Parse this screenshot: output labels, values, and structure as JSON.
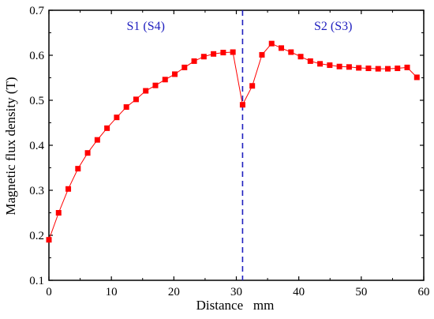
{
  "chart_data": {
    "type": "line",
    "xlabel": "Distance   mm",
    "ylabel": "Magnetic flux density (T)",
    "xlim": [
      0,
      60
    ],
    "ylim": [
      0.1,
      0.7
    ],
    "xticks": [
      0,
      10,
      20,
      30,
      40,
      50,
      60
    ],
    "yticks": [
      0.1,
      0.2,
      0.3,
      0.4,
      0.5,
      0.6,
      0.7
    ],
    "xtick_labels": [
      "0",
      "10",
      "20",
      "30",
      "40",
      "50",
      "60"
    ],
    "ytick_labels": [
      "0.1",
      "0.2",
      "0.3",
      "0.4",
      "0.5",
      "0.6",
      "0.7"
    ],
    "grid": false,
    "annotations": [
      {
        "text": "S1 (S4)",
        "x": 15.5,
        "y": 0.665,
        "color": "#1f1fbf"
      },
      {
        "text": "S2 (S3)",
        "x": 45.5,
        "y": 0.665,
        "color": "#1f1fbf"
      }
    ],
    "divider": {
      "x": 31.0,
      "color": "#1f1fbf",
      "style": "dashed"
    },
    "series": [
      {
        "color": "#ff0000",
        "marker": "square",
        "x": [
          0,
          1.55,
          3.1,
          4.65,
          6.2,
          7.75,
          9.3,
          10.85,
          12.4,
          13.95,
          15.5,
          17.05,
          18.6,
          20.15,
          21.7,
          23.25,
          24.8,
          26.35,
          27.9,
          29.45,
          31.0,
          32.55,
          34.1,
          35.65,
          37.2,
          38.75,
          40.3,
          41.85,
          43.4,
          44.95,
          46.5,
          48.05,
          49.6,
          51.15,
          52.7,
          54.25,
          55.8,
          57.35,
          58.9
        ],
        "y": [
          0.19,
          0.25,
          0.303,
          0.348,
          0.383,
          0.412,
          0.438,
          0.462,
          0.485,
          0.502,
          0.521,
          0.533,
          0.546,
          0.558,
          0.573,
          0.587,
          0.597,
          0.603,
          0.606,
          0.607,
          0.49,
          0.532,
          0.601,
          0.626,
          0.616,
          0.607,
          0.597,
          0.587,
          0.581,
          0.578,
          0.575,
          0.574,
          0.572,
          0.571,
          0.57,
          0.57,
          0.571,
          0.573,
          0.551
        ]
      }
    ]
  }
}
